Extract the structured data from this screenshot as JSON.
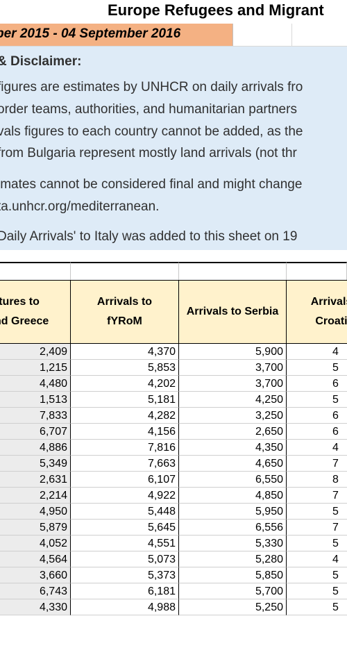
{
  "title": "Europe Refugees and Migrant",
  "date_range": "ber 2015 - 04 September 2016",
  "disclaimer": {
    "heading": "& Disclaimer:",
    "lines": [
      "figures are estimates by UNHCR on daily arrivals fro",
      "order teams, authorities, and humanitarian partners",
      "vals figures to each country cannot be added, as the",
      "from Bulgaria represent mostly land arrivals (not thr",
      "imates cannot be considered final and might change",
      "ta.unhcr.org/mediterranean.",
      "Daily Arrivals' to Italy was added to this sheet on 19"
    ]
  },
  "table": {
    "headers": [
      "rtures to\nnd Greece",
      "Arrivals to\nfYRoM",
      "Arrivals to Serbia",
      "Arrivals\nCroati"
    ],
    "rows": [
      [
        "2,409",
        "4,370",
        "5,900",
        "4"
      ],
      [
        "1,215",
        "5,853",
        "3,700",
        "5"
      ],
      [
        "4,480",
        "4,202",
        "3,700",
        "6"
      ],
      [
        "1,513",
        "5,181",
        "4,250",
        "5"
      ],
      [
        "7,833",
        "4,282",
        "3,250",
        "6"
      ],
      [
        "6,707",
        "4,156",
        "2,650",
        "6"
      ],
      [
        "4,886",
        "7,816",
        "4,350",
        "4"
      ],
      [
        "5,349",
        "7,663",
        "4,650",
        "7"
      ],
      [
        "2,631",
        "6,107",
        "6,550",
        "8"
      ],
      [
        "2,214",
        "4,922",
        "4,850",
        "7"
      ],
      [
        "4,950",
        "5,448",
        "5,950",
        "5"
      ],
      [
        "5,879",
        "5,645",
        "6,556",
        "7"
      ],
      [
        "4,052",
        "4,551",
        "5,330",
        "5"
      ],
      [
        "4,564",
        "5,073",
        "5,280",
        "4"
      ],
      [
        "3,660",
        "5,373",
        "5,850",
        "5"
      ],
      [
        "6,743",
        "6,181",
        "5,700",
        "5"
      ],
      [
        "4,330",
        "4,988",
        "5,250",
        "5"
      ]
    ]
  },
  "colors": {
    "date_fill": "#f4b183",
    "disclaimer_fill": "#deebf7",
    "header_fill": "#fff2cc",
    "first_col_fill": "#ececec"
  }
}
